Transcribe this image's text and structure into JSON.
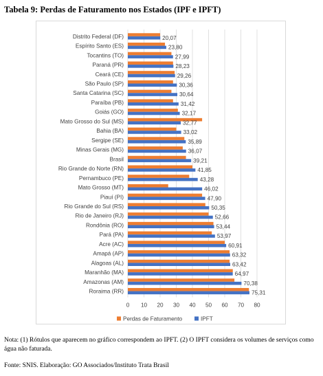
{
  "caption": "Tabela 9: Perdas de Faturamento nos Estados (IPF e IPFT)",
  "note": "Nota: (1) Rótulos que aparecem no gráfico correspondem ao IPFT. (2) O IPFT considera os volumes de serviços como água não faturada.",
  "source": "Fonte: SNIS. Elaboração: GO Associados/Instituto Trata Brasil",
  "colors": {
    "perdas": "#ed7d31",
    "ipft": "#4472c4",
    "grid": "#d9d9d9",
    "text": "#404040"
  },
  "chart_data": {
    "type": "bar",
    "orientation": "horizontal",
    "categories": [
      "Distrito Federal (DF)",
      "Espírito Santo (ES)",
      "Tocantins (TO)",
      "Paraná (PR)",
      "Ceará (CE)",
      "São Paulo (SP)",
      "Santa Catarina (SC)",
      "Paraíba (PB)",
      "Goiás (GO)",
      "Mato Grosso do Sul (MS)",
      "Bahia (BA)",
      "Sergipe (SE)",
      "Minas Gerais (MG)",
      "Brasil",
      "Rio Grande do Norte (RN)",
      "Pernambuco (PE)",
      "Mato Grosso (MT)",
      "Piauí (PI)",
      "Rio Grande do Sul (RS)",
      "Rio de Janeiro (RJ)",
      "Rondônia (RO)",
      "Pará (PA)",
      "Acre (AC)",
      "Amapá (AP)",
      "Alagoas (AL)",
      "Maranhão (MA)",
      "Amazonas (AM)",
      "Roraima (RR)"
    ],
    "series": [
      {
        "name": "Perdas de Faturamento",
        "values": [
          20,
          23,
          27,
          28,
          29,
          28,
          27,
          28,
          31,
          46,
          30,
          35,
          34,
          36,
          40,
          38,
          25,
          46,
          48,
          50,
          53,
          52,
          60,
          63,
          63,
          65,
          66,
          75
        ]
      },
      {
        "name": "IPFT",
        "values": [
          20.07,
          23.8,
          27.99,
          28.23,
          29.26,
          30.36,
          30.64,
          31.42,
          32.17,
          32.77,
          33.02,
          35.89,
          36.07,
          39.21,
          41.85,
          43.28,
          46.02,
          47.9,
          50.35,
          52.66,
          53.44,
          53.97,
          60.91,
          63.32,
          63.42,
          64.97,
          70.38,
          75.31
        ]
      }
    ],
    "data_labels": [
      "20,07",
      "23,80",
      "27,99",
      "28,23",
      "29,26",
      "30,36",
      "30,64",
      "31,42",
      "32,17",
      "32,77",
      "33,02",
      "35,89",
      "36,07",
      "39,21",
      "41,85",
      "43,28",
      "46,02",
      "47,90",
      "50,35",
      "52,66",
      "53,44",
      "53,97",
      "60,91",
      "63,32",
      "63,42",
      "64,97",
      "70,38",
      "75,31"
    ],
    "xlim": [
      0,
      80
    ],
    "xticks": [
      "0",
      "10",
      "20",
      "30",
      "40",
      "50",
      "60",
      "70",
      "80"
    ],
    "grid": true,
    "legend": "bottom"
  }
}
